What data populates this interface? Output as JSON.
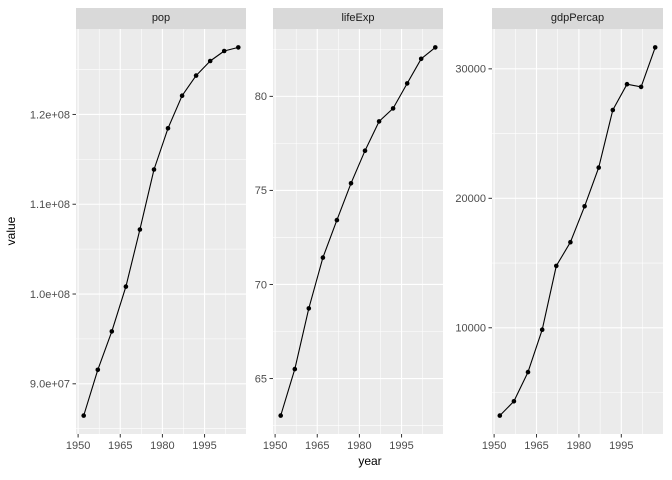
{
  "chart_data": {
    "type": "line",
    "xlabel": "year",
    "ylabel": "value",
    "legend_position": "none",
    "grid": true,
    "x": [
      1952,
      1957,
      1962,
      1967,
      1972,
      1977,
      1982,
      1987,
      1992,
      1997,
      2002,
      2007
    ],
    "xlim": [
      1949.25,
      2009.75
    ],
    "x_ticks": {
      "values": [
        1950,
        1965,
        1980,
        1995
      ],
      "labels": [
        "1950",
        "1965",
        "1980",
        "1995"
      ]
    },
    "x_minor": [
      1957.5,
      1972.5,
      1987.5,
      2002.5
    ],
    "facets": [
      {
        "label": "pop",
        "values": [
          86459025,
          91563009,
          95831757,
          100825279,
          107188273,
          113872473,
          118454974,
          122091915,
          124329269,
          125956499,
          127065841,
          127467972
        ],
        "ylim": [
          84408578,
          129518419
        ],
        "y_ticks": {
          "values": [
            90000000,
            100000000,
            110000000,
            120000000
          ],
          "labels": [
            "9.0e+07",
            "1.0e+08",
            "1.1e+08",
            "1.2e+08"
          ]
        },
        "y_minor": [
          85000000,
          95000000,
          105000000,
          115000000,
          125000000
        ]
      },
      {
        "label": "lifeExp",
        "values": [
          63.03,
          65.5,
          68.73,
          71.43,
          73.42,
          75.38,
          77.11,
          78.67,
          79.36,
          80.69,
          82.0,
          82.603
        ],
        "ylim": [
          62.051,
          83.582
        ],
        "y_ticks": {
          "values": [
            65,
            70,
            75,
            80
          ],
          "labels": [
            "65",
            "70",
            "75",
            "80"
          ]
        },
        "y_minor": [
          62.5,
          67.5,
          72.5,
          77.5,
          82.5
        ]
      },
      {
        "label": "gdpPercap",
        "values": [
          3216.956,
          4317.694,
          6576.649,
          9847.789,
          14778.786,
          16610.377,
          19384.106,
          22375.942,
          26824.895,
          28816.585,
          28604.592,
          31656.068
        ],
        "ylim": [
          1795,
          33078
        ],
        "y_ticks": {
          "values": [
            10000,
            20000,
            30000
          ],
          "labels": [
            "10000",
            "20000",
            "30000"
          ]
        },
        "y_minor": [
          5000,
          15000,
          25000
        ]
      }
    ]
  },
  "colors": {
    "figure_bg": "#FFFFFF",
    "panel_bg": "#EBEBEB",
    "strip_bg": "#D9D9D9",
    "grid": "#FFFFFF",
    "tick_mark": "#333333",
    "axis_text": "#4D4D4D",
    "strip_text": "#1A1A1A",
    "title_text": "#000000",
    "data": "#000000"
  }
}
